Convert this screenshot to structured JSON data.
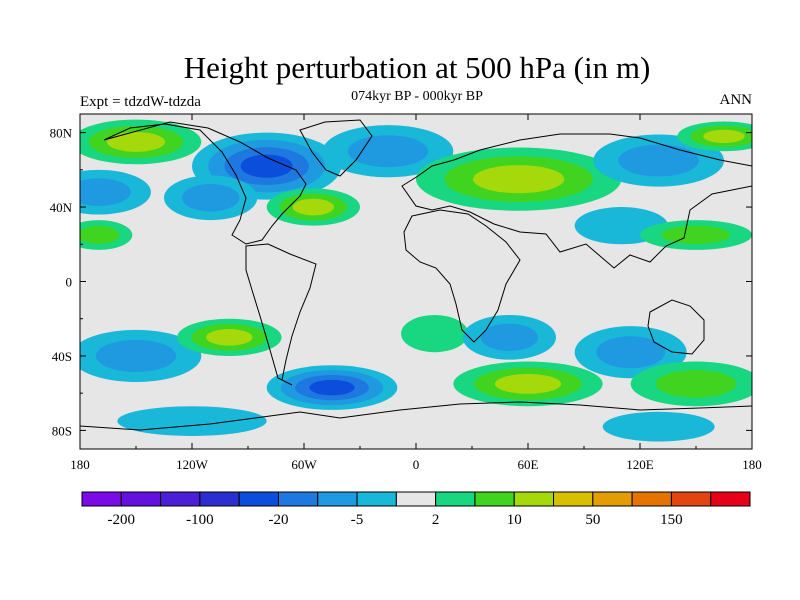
{
  "chart_data": {
    "type": "heatmap",
    "title": "Height perturbation at 500 hPa (in m)",
    "subtitle": "074kyr BP - 000kyr BP",
    "left_label": "Expt = tdzdW-tdzda",
    "right_label": "ANN",
    "x_axis": {
      "range": [
        -180,
        180
      ],
      "ticks": [
        -180,
        -120,
        -60,
        0,
        60,
        120,
        180
      ],
      "tick_labels": [
        "180",
        "120W",
        "60W",
        "0",
        "60E",
        "120E",
        "180"
      ]
    },
    "y_axis": {
      "range": [
        -90,
        90
      ],
      "ticks": [
        80,
        40,
        0,
        -40,
        -80
      ],
      "tick_labels": [
        "80N",
        "40N",
        "0",
        "40S",
        "80S"
      ]
    },
    "colorbar": {
      "colors": [
        "#7a0ae6",
        "#6410de",
        "#4c1ed6",
        "#2c2fd0",
        "#0c4edc",
        "#1f78e0",
        "#1f9ae0",
        "#1ab8d8",
        "#e6e6e6",
        "#19d680",
        "#40d420",
        "#a6d90c",
        "#d8c000",
        "#e39d00",
        "#e57300",
        "#e24512",
        "#e60018"
      ],
      "labels": [
        "-200",
        "-100",
        "-20",
        "-5",
        "2",
        "10",
        "50",
        "150"
      ]
    },
    "field_features": [
      {
        "lon": -80,
        "lat": 62,
        "value": -45,
        "rx": 40,
        "ry": 18
      },
      {
        "lon": -15,
        "lat": 70,
        "value": -12,
        "rx": 35,
        "ry": 14
      },
      {
        "lon": -150,
        "lat": 75,
        "value": 25,
        "rx": 35,
        "ry": 12
      },
      {
        "lon": -170,
        "lat": 48,
        "value": -10,
        "rx": 28,
        "ry": 12
      },
      {
        "lon": -110,
        "lat": 45,
        "value": -12,
        "rx": 25,
        "ry": 12
      },
      {
        "lon": -55,
        "lat": 40,
        "value": 25,
        "rx": 25,
        "ry": 10
      },
      {
        "lon": 55,
        "lat": 55,
        "value": 20,
        "rx": 55,
        "ry": 17
      },
      {
        "lon": 130,
        "lat": 65,
        "value": -12,
        "rx": 35,
        "ry": 14
      },
      {
        "lon": 165,
        "lat": 78,
        "value": 20,
        "rx": 25,
        "ry": 8
      },
      {
        "lon": 110,
        "lat": 30,
        "value": -8,
        "rx": 25,
        "ry": 10
      },
      {
        "lon": 150,
        "lat": 25,
        "value": 12,
        "rx": 30,
        "ry": 8
      },
      {
        "lon": -170,
        "lat": 25,
        "value": 12,
        "rx": 18,
        "ry": 8
      },
      {
        "lon": -150,
        "lat": -40,
        "value": -12,
        "rx": 35,
        "ry": 14
      },
      {
        "lon": -100,
        "lat": -30,
        "value": 15,
        "rx": 28,
        "ry": 10
      },
      {
        "lon": -45,
        "lat": -57,
        "value": -35,
        "rx": 35,
        "ry": 12
      },
      {
        "lon": 10,
        "lat": -28,
        "value": 8,
        "rx": 18,
        "ry": 10
      },
      {
        "lon": 50,
        "lat": -30,
        "value": -10,
        "rx": 25,
        "ry": 12
      },
      {
        "lon": 115,
        "lat": -38,
        "value": -10,
        "rx": 30,
        "ry": 14
      },
      {
        "lon": 60,
        "lat": -55,
        "value": 18,
        "rx": 40,
        "ry": 12
      },
      {
        "lon": 150,
        "lat": -55,
        "value": 14,
        "rx": 35,
        "ry": 12
      },
      {
        "lon": -120,
        "lat": -75,
        "value": -8,
        "rx": 40,
        "ry": 8
      },
      {
        "lon": 130,
        "lat": -78,
        "value": -6,
        "rx": 30,
        "ry": 8
      }
    ]
  }
}
